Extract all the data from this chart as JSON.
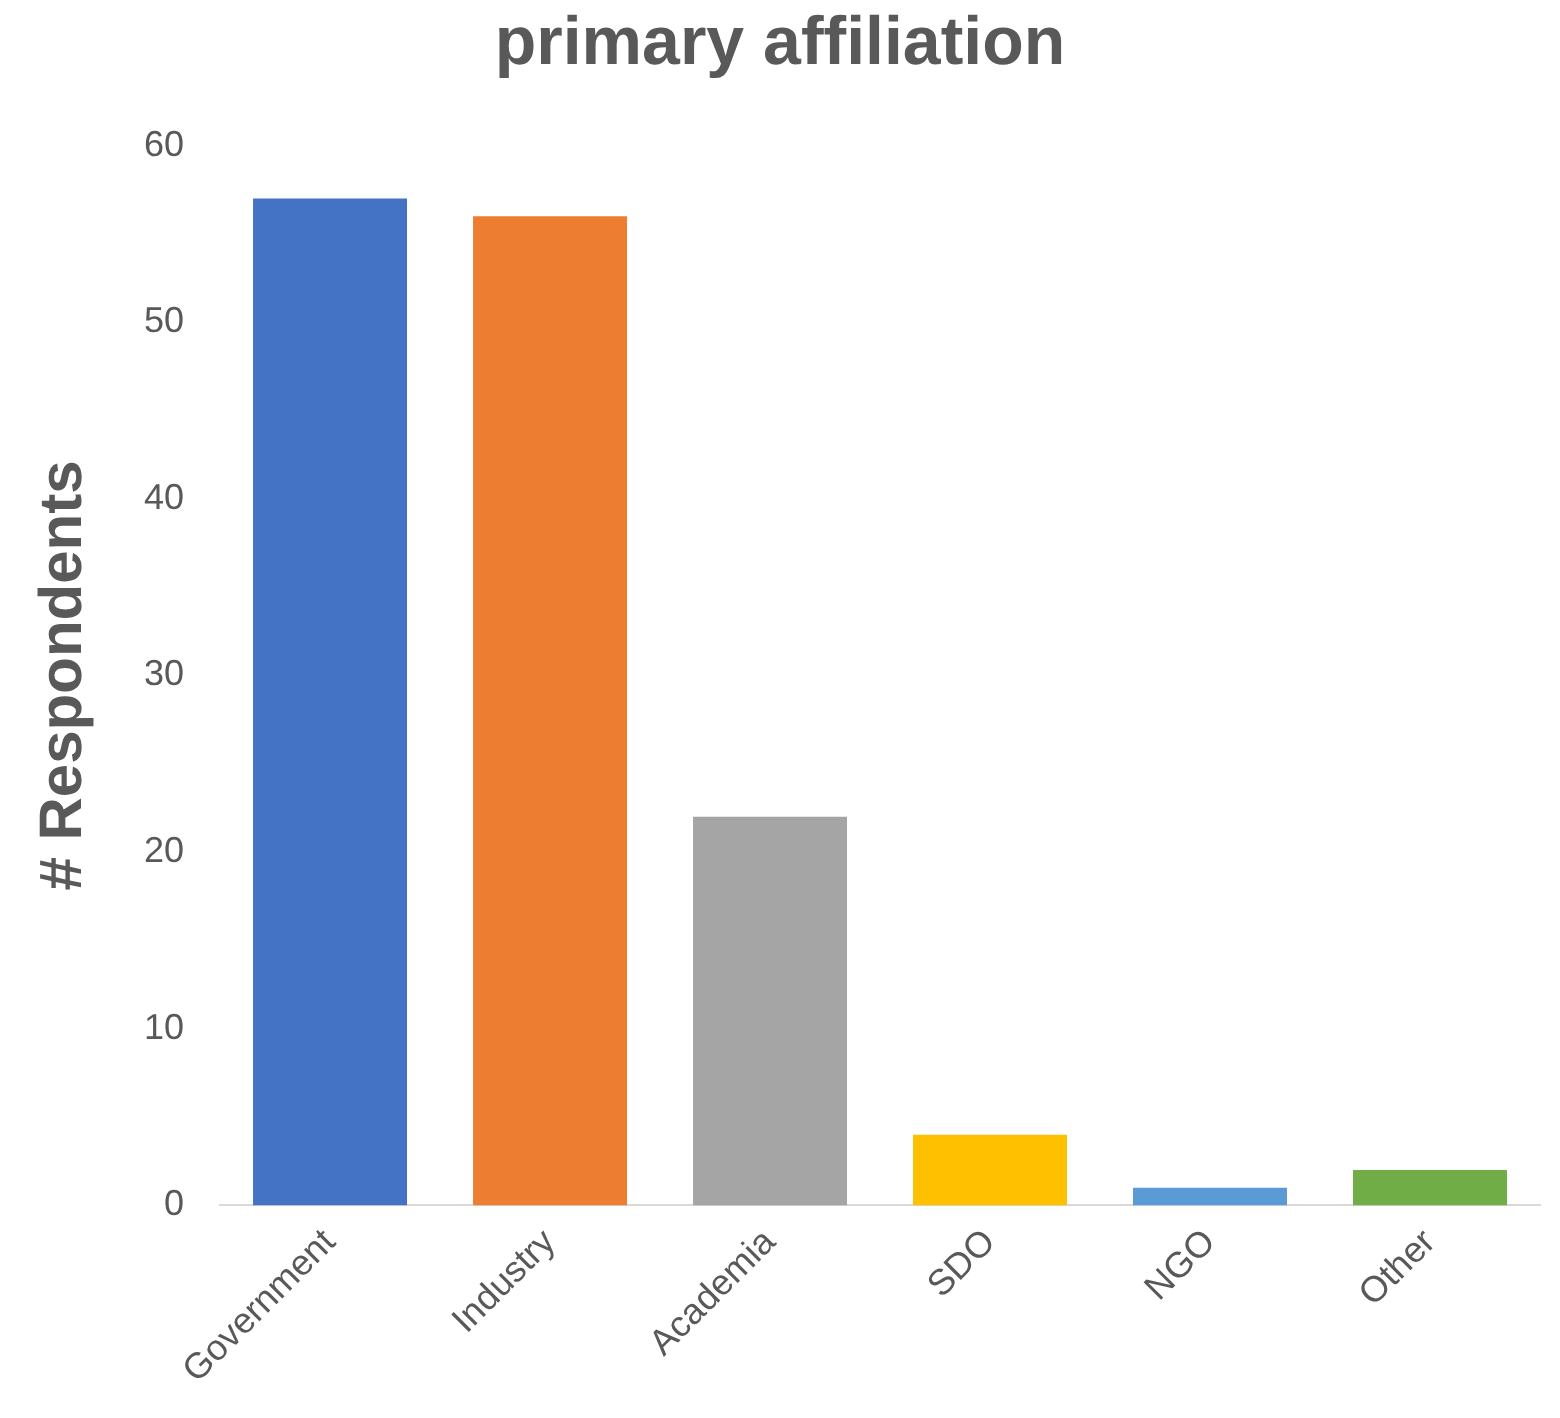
{
  "chart_data": {
    "type": "bar",
    "title": "primary affiliation",
    "ylabel": "# Respondents",
    "categories": [
      "Government",
      "Industry",
      "Academia",
      "SDO",
      "NGO",
      "Other"
    ],
    "values": [
      57,
      56,
      22,
      4,
      1,
      2
    ],
    "colors": [
      "#4472c4",
      "#ed7d31",
      "#a5a5a5",
      "#ffc000",
      "#5b9bd5",
      "#70ad47"
    ],
    "ylim": [
      0,
      60
    ],
    "yticks": [
      0,
      10,
      20,
      30,
      40,
      50,
      60
    ],
    "grid": false,
    "legend": false
  }
}
